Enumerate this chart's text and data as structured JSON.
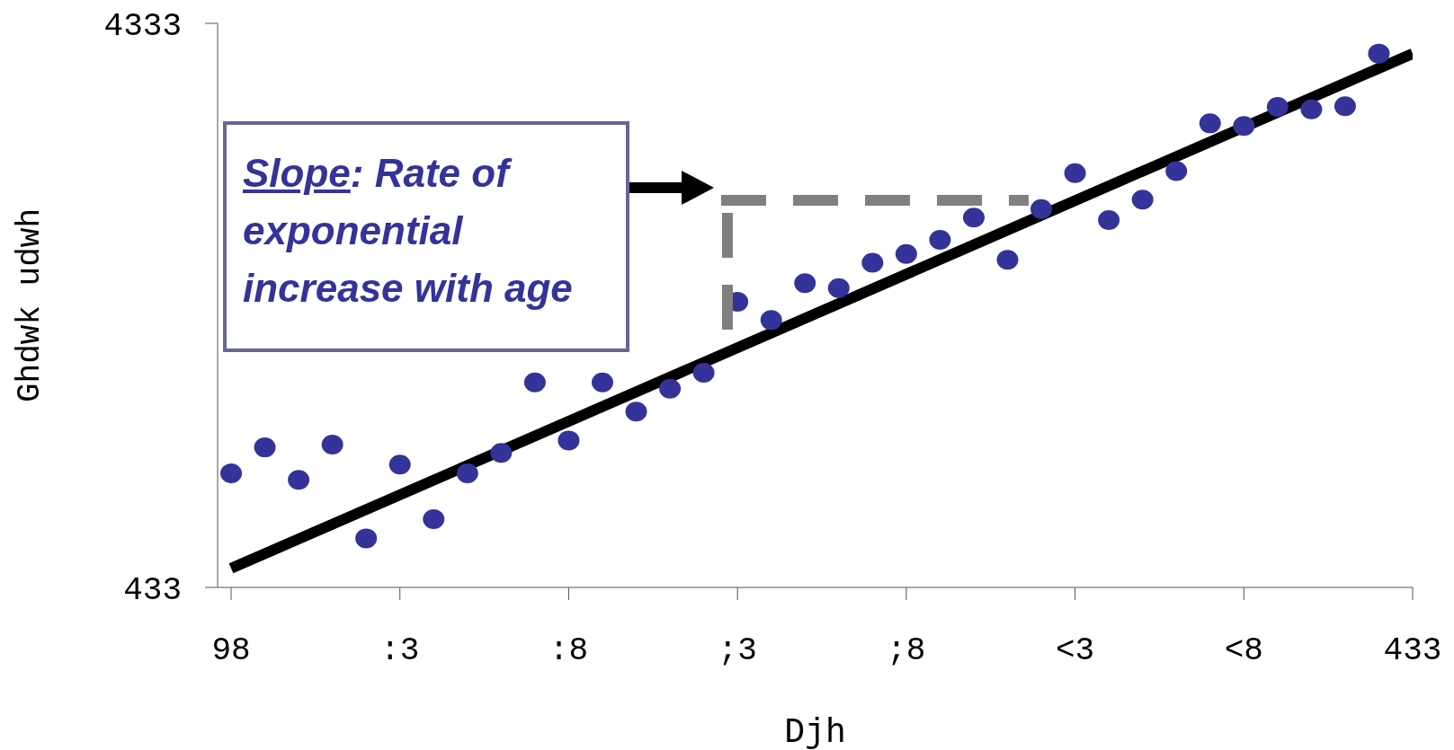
{
  "chart_data": {
    "type": "scatter",
    "xlabel": "Djh",
    "ylabel": "Ghdwk udwh",
    "log": "y",
    "grid": false,
    "legend": false,
    "categories": [
      "98",
      null,
      null,
      null,
      null,
      ":3",
      null,
      null,
      null,
      null,
      ":8",
      null,
      null,
      null,
      null,
      ";3",
      null,
      null,
      null,
      null,
      ";8",
      null,
      null,
      null,
      null,
      "<3",
      null,
      null,
      null,
      null,
      "<8",
      null,
      null,
      null,
      null,
      "433"
    ],
    "ylim": [
      433,
      4333
    ],
    "yticks": [
      433,
      4333
    ],
    "annotations": [
      "Slope: Rate of exponential increase with age"
    ],
    "series": [
      {
        "color": "#333399",
        "marker": "circle",
        "values": [
          690,
          767,
          672,
          776,
          529,
          715,
          572,
          690,
          750,
          1000,
          789,
          1000,
          888,
          975,
          1040,
          1390,
          1290,
          1500,
          1470,
          1630,
          1690,
          1790,
          1960,
          1650,
          2030,
          2350,
          1940,
          2110,
          2370,
          2880,
          2850,
          3080,
          3050,
          3090,
          3830,
          null
        ]
      },
      {
        "type": "line",
        "color": "#000000",
        "marker": "none",
        "values": [
          468,
          null,
          null,
          null,
          null,
          null,
          null,
          null,
          null,
          null,
          null,
          null,
          null,
          null,
          null,
          null,
          null,
          null,
          null,
          null,
          null,
          null,
          null,
          null,
          null,
          null,
          null,
          null,
          null,
          null,
          null,
          null,
          null,
          null,
          null,
          3830
        ]
      }
    ]
  }
}
